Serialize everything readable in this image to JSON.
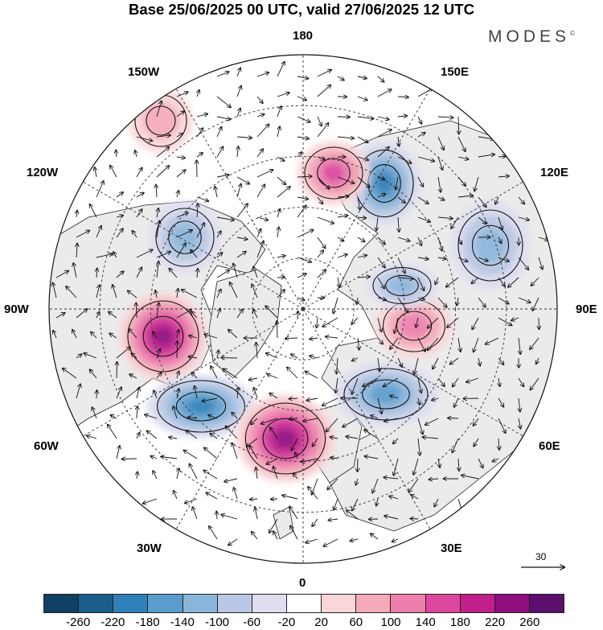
{
  "title": "Base 25/06/2025 00 UTC, valid 27/06/2025 12 UTC",
  "brand": "MODES",
  "brand_mark": "©",
  "longitude_labels": {
    "lon_180": "180",
    "lon_150w": "150W",
    "lon_150e": "150E",
    "lon_120w": "120W",
    "lon_120e": "120E",
    "lon_90w": "90W",
    "lon_90e": "90E",
    "lon_60w": "60W",
    "lon_60e": "60E",
    "lon_30w": "30W",
    "lon_30e": "30E",
    "lon_0": "0"
  },
  "reference_vector": {
    "value": "30"
  },
  "colorbar": {
    "ticks": [
      "-260",
      "-220",
      "-180",
      "-140",
      "-100",
      "-60",
      "-20",
      "20",
      "60",
      "100",
      "140",
      "180",
      "220",
      "260"
    ],
    "colors": [
      "#0f3f63",
      "#1a5e8c",
      "#2f80b8",
      "#5a9ccc",
      "#8bb6db",
      "#b9c8e4",
      "#dedef0",
      "#ffffff",
      "#f9d6d8",
      "#f4aab8",
      "#ee7fad",
      "#dc479d",
      "#c01f8c",
      "#8e0f7d",
      "#5c0f6c"
    ]
  },
  "map": {
    "projection": "north-polar-stereographic",
    "field": "geopotential height anomaly",
    "anomaly_features": [
      {
        "sign": "positive",
        "region": "Hudson Bay / northern Canada",
        "peak": 260
      },
      {
        "sign": "negative",
        "region": "Labrador Sea / southern Greenland",
        "peak": -220
      },
      {
        "sign": "positive",
        "region": "Iceland / North Atlantic",
        "peak": 240
      },
      {
        "sign": "negative",
        "region": "Barents Sea / northern Scandinavia",
        "peak": -180
      },
      {
        "sign": "negative",
        "region": "East Siberian Sea",
        "peak": -200
      },
      {
        "sign": "positive",
        "region": "Chukchi Sea",
        "peak": 160
      },
      {
        "sign": "positive",
        "region": "Central Siberia",
        "peak": 140
      },
      {
        "sign": "negative",
        "region": "Taymyr / Kara Sea",
        "peak": -140
      },
      {
        "sign": "negative",
        "region": "Alaska / Beaufort Sea",
        "peak": -120
      },
      {
        "sign": "negative",
        "region": "Western Siberia",
        "peak": -120
      },
      {
        "sign": "positive",
        "region": "Bering Sea",
        "peak": 80
      }
    ]
  },
  "colors": {
    "grid": "#333333",
    "coast": "#222222",
    "arrow": "#111111",
    "land": "#ebebeb"
  }
}
